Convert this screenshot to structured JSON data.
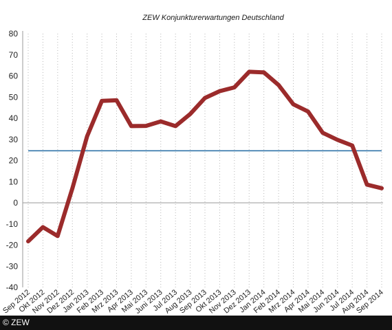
{
  "chart_data": {
    "type": "line",
    "title": "ZEW Konjunkturerwartungen Deutschland",
    "categories": [
      "Sep 2012",
      "Okt 2012",
      "Nov 2012",
      "Dez 2012",
      "Jan 2013",
      "Feb 2013",
      "Mrz 2013",
      "Apr 2013",
      "Mai 2013",
      "Juni 2013",
      "Jul 2013",
      "Aug 2013",
      "Sep 2013",
      "Okt 2013",
      "Nov 2013",
      "Dez 2013",
      "Jan 2014",
      "Feb 2014",
      "Mrz 2014",
      "Apr 2014",
      "Mai 2014",
      "Jun 2014",
      "Jul 2014",
      "Aug 2014",
      "Sep 2014"
    ],
    "series": [
      {
        "values": [
          -18.2,
          -11.5,
          -15.7,
          6.9,
          31.5,
          48.2,
          48.5,
          36.3,
          36.4,
          38.5,
          36.3,
          42.0,
          49.6,
          52.8,
          54.6,
          62.0,
          61.7,
          55.7,
          46.6,
          43.2,
          33.1,
          29.8,
          27.1,
          8.6,
          6.9
        ],
        "color": "#9b2b2b"
      }
    ],
    "reference_line": {
      "value": 24.6,
      "color": "#2f73a8"
    },
    "ylim": [
      -40,
      80
    ],
    "yticks": [
      -40,
      -30,
      -20,
      -10,
      0,
      10,
      20,
      30,
      40,
      50,
      60,
      70,
      80
    ],
    "grid": true
  },
  "footer": {
    "copyright": "© ZEW"
  }
}
